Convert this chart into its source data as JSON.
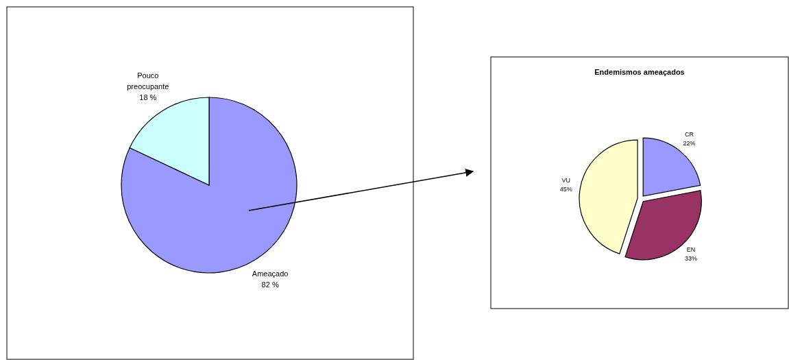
{
  "chart_data": [
    {
      "type": "pie",
      "categories": [
        "Ameaçado",
        "Pouco preocupante"
      ],
      "values": [
        82,
        18
      ],
      "colors": [
        "#9999ff",
        "#ccffff"
      ],
      "value_labels": [
        "82 %",
        "18 %"
      ]
    },
    {
      "type": "pie",
      "title": "Endemismos ameaçados",
      "categories": [
        "CR",
        "EN",
        "VU"
      ],
      "values": [
        22,
        33,
        45
      ],
      "colors": [
        "#9999ff",
        "#993366",
        "#ffffcc"
      ],
      "value_labels": [
        "22%",
        "33%",
        "45%"
      ]
    }
  ]
}
